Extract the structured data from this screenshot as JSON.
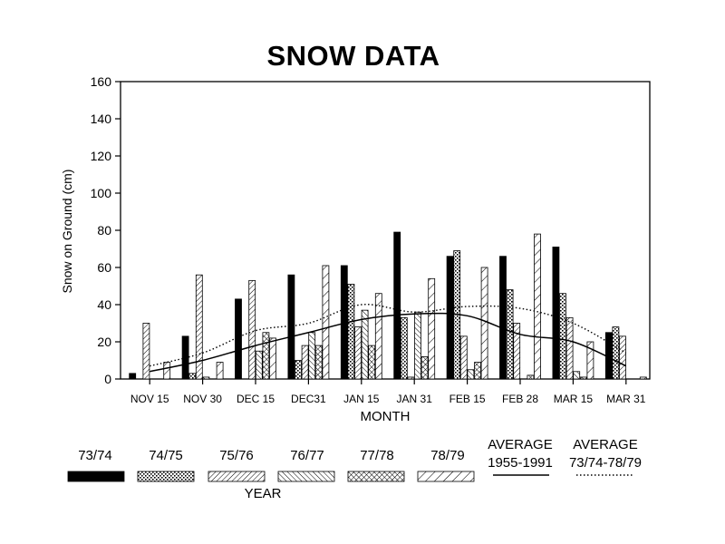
{
  "chart_data": {
    "type": "bar",
    "title": "SNOW DATA",
    "xlabel": "MONTH",
    "ylabel": "Snow on Ground (cm)",
    "legend_title": "YEAR",
    "ylim": [
      0,
      160
    ],
    "yticks": [
      0,
      20,
      40,
      60,
      80,
      100,
      120,
      140,
      160
    ],
    "categories": [
      "NOV 15",
      "NOV 30",
      "DEC 15",
      "DEC31",
      "JAN 15",
      "JAN 31",
      "FEB 15",
      "FEB 28",
      "MAR 15",
      "MAR 31"
    ],
    "series": [
      {
        "name": "73/74",
        "pattern": "solid",
        "values": [
          3,
          23,
          43,
          56,
          61,
          79,
          66,
          66,
          71,
          25
        ]
      },
      {
        "name": "74/75",
        "pattern": "stipple",
        "values": [
          0,
          3,
          0,
          10,
          51,
          33,
          69,
          48,
          46,
          28
        ]
      },
      {
        "name": "75/76",
        "pattern": "diag-fine",
        "values": [
          30,
          56,
          53,
          18,
          28,
          1,
          23,
          30,
          33,
          23
        ]
      },
      {
        "name": "76/77",
        "pattern": "backdiag",
        "values": [
          0,
          1,
          15,
          25,
          37,
          36,
          5,
          0,
          4,
          0
        ]
      },
      {
        "name": "77/78",
        "pattern": "crosshatch",
        "values": [
          0,
          0,
          25,
          18,
          18,
          12,
          9,
          2,
          1,
          0
        ]
      },
      {
        "name": "78/79",
        "pattern": "diag-wide",
        "values": [
          9,
          9,
          22,
          61,
          46,
          54,
          60,
          78,
          20,
          1
        ]
      }
    ],
    "lines": [
      {
        "name": "AVERAGE 1955-1991",
        "line1": "AVERAGE",
        "line2": "1955-1991",
        "style": "solid",
        "values": [
          4,
          10,
          18,
          25,
          32,
          35,
          34,
          24,
          20,
          7
        ]
      },
      {
        "name": "AVERAGE 73/74-78/79",
        "line1": "AVERAGE",
        "line2": "73/74-78/79",
        "style": "dotted",
        "values": [
          7,
          14,
          26,
          30,
          40,
          36,
          39,
          38,
          30,
          14
        ]
      }
    ],
    "grid": false,
    "legend_position": "bottom"
  }
}
